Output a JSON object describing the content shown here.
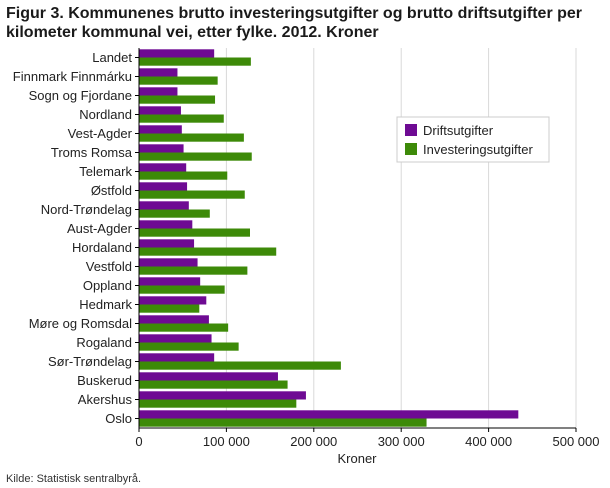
{
  "title": "Figur 3. Kommunenes brutto investeringsutgifter og brutto driftsutgifter per kilometer kommunal vei, etter fylke. 2012. Kroner",
  "source": "Kilde: Statistisk sentralbyrå.",
  "colors": {
    "drift": "#6e0a93",
    "invest": "#3d8a08",
    "grid": "#d9d9d9",
    "axis": "#000000"
  },
  "chart_data": {
    "type": "bar",
    "orientation": "horizontal",
    "title": "Figur 3. Kommunenes brutto investeringsutgifter og brutto driftsutgifter per kilometer kommunal vei, etter fylke. 2012. Kroner",
    "xlabel": "Kroner",
    "ylabel": "",
    "xlim": [
      0,
      500000
    ],
    "xticks": [
      0,
      100000,
      200000,
      300000,
      400000,
      500000
    ],
    "xtick_labels": [
      "0",
      "100 000",
      "200 000",
      "300 000",
      "400 000",
      "500 000"
    ],
    "grid": true,
    "legend_position": "top-right",
    "categories": [
      "Landet",
      "Finnmark Finnmárku",
      "Sogn og Fjordane",
      "Nordland",
      "Vest-Agder",
      "Troms Romsa",
      "Telemark",
      "Østfold",
      "Nord-Trøndelag",
      "Aust-Agder",
      "Hordaland",
      "Vestfold",
      "Oppland",
      "Hedmark",
      "Møre og Romsdal",
      "Rogaland",
      "Sør-Trøndelag",
      "Buskerud",
      "Akershus",
      "Oslo"
    ],
    "series": [
      {
        "name": "Driftsutgifter",
        "color": "#6e0a93",
        "values": [
          86000,
          44000,
          44000,
          48000,
          49000,
          51000,
          54000,
          55000,
          57000,
          61000,
          63000,
          67000,
          70000,
          77000,
          80000,
          83000,
          86000,
          159000,
          191000,
          434000
        ]
      },
      {
        "name": "Investeringsutgifter",
        "color": "#3d8a08",
        "values": [
          128000,
          90000,
          87000,
          97000,
          120000,
          129000,
          101000,
          121000,
          81000,
          127000,
          157000,
          124000,
          98000,
          69000,
          102000,
          114000,
          231000,
          170000,
          180000,
          329000
        ]
      }
    ]
  }
}
